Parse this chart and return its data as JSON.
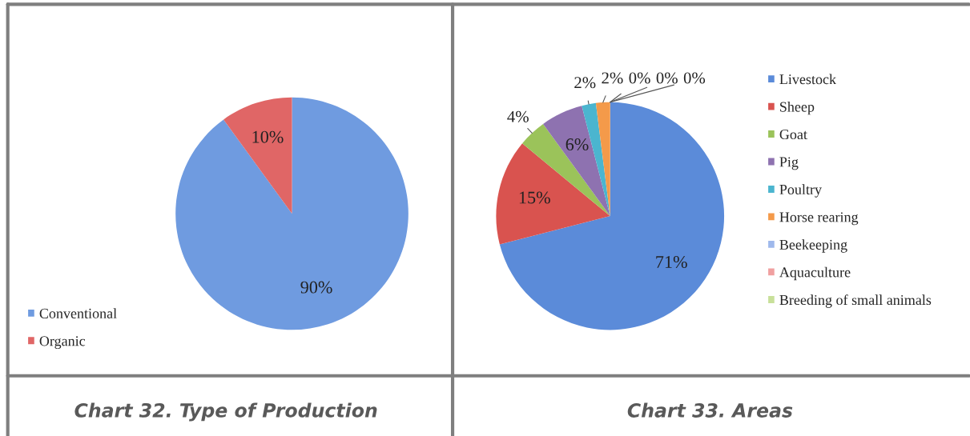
{
  "chart_data": [
    {
      "type": "pie",
      "title": "Chart 32. Type of Production",
      "categories": [
        "Conventional",
        "Organic"
      ],
      "values": [
        90,
        10
      ],
      "colors": [
        "#6f9be0",
        "#e06666"
      ],
      "value_labels": [
        "90%",
        "10%"
      ],
      "legend": "bottom left"
    },
    {
      "type": "pie",
      "title": "Chart 33. Areas",
      "categories": [
        "Livestock",
        "Sheep",
        "Goat",
        "Pig",
        "Poultry",
        "Horse rearing",
        "Beekeeping",
        "Aquaculture",
        "Breeding of small animals"
      ],
      "values": [
        71,
        15,
        4,
        6,
        2,
        2,
        0,
        0,
        0
      ],
      "colors": [
        "#5b8bd9",
        "#d9534f",
        "#9bc35a",
        "#8e72b0",
        "#4bb5cf",
        "#f49a4a",
        "#9fb9ec",
        "#f0a0a0",
        "#c8e09a"
      ],
      "value_labels": [
        "71%",
        "15%",
        "4%",
        "6%",
        "2%",
        "2%",
        "0%",
        "0%",
        "0%"
      ],
      "legend": "right"
    }
  ]
}
